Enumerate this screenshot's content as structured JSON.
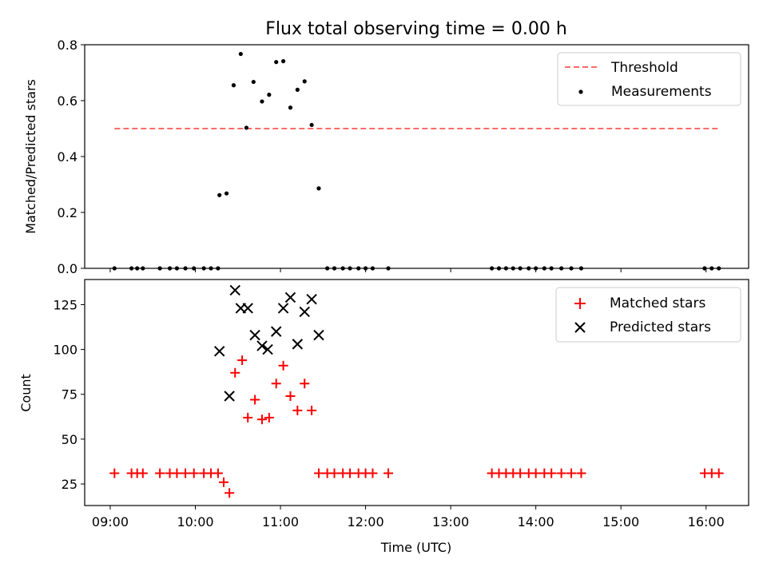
{
  "chart_data": [
    {
      "type": "scatter",
      "title": "Flux total observing time = 0.00 h",
      "xlabel": "",
      "ylabel": "Matched/Predicted stars",
      "xlim": [
        "08:42",
        "16:30"
      ],
      "ylim": [
        0,
        0.8
      ],
      "yticks": [
        "0.0",
        "0.2",
        "0.4",
        "0.6",
        "0.8"
      ],
      "legend": "top-right",
      "threshold": {
        "name": "Threshold",
        "color": "#ff6b6b",
        "style": "dashed",
        "y": 0.5,
        "x_start": "09:03",
        "x_end": "16:10"
      },
      "series": [
        {
          "name": "Measurements",
          "color": "#000000",
          "marker": "dot",
          "points": [
            [
              "09:03",
              0
            ],
            [
              "09:15",
              0
            ],
            [
              "09:19",
              0
            ],
            [
              "09:23",
              0
            ],
            [
              "09:35",
              0
            ],
            [
              "09:42",
              0
            ],
            [
              "09:47",
              0
            ],
            [
              "09:53",
              0
            ],
            [
              "09:59",
              0
            ],
            [
              "10:06",
              0
            ],
            [
              "10:11",
              0
            ],
            [
              "10:16",
              0
            ],
            [
              "10:17",
              0.262
            ],
            [
              "10:22",
              0.268
            ],
            [
              "10:27",
              0.655
            ],
            [
              "10:32",
              0.767
            ],
            [
              "10:36",
              0.503
            ],
            [
              "10:41",
              0.667
            ],
            [
              "10:47",
              0.597
            ],
            [
              "10:52",
              0.621
            ],
            [
              "10:57",
              0.738
            ],
            [
              "11:02",
              0.741
            ],
            [
              "11:07",
              0.575
            ],
            [
              "11:12",
              0.639
            ],
            [
              "11:17",
              0.669
            ],
            [
              "11:22",
              0.513
            ],
            [
              "11:27",
              0.286
            ],
            [
              "11:33",
              0
            ],
            [
              "11:38",
              0
            ],
            [
              "11:44",
              0
            ],
            [
              "11:49",
              0
            ],
            [
              "11:55",
              0
            ],
            [
              "12:00",
              0
            ],
            [
              "12:05",
              0
            ],
            [
              "12:16",
              0
            ],
            [
              "13:29",
              0
            ],
            [
              "13:34",
              0
            ],
            [
              "13:39",
              0
            ],
            [
              "13:44",
              0
            ],
            [
              "13:49",
              0
            ],
            [
              "13:55",
              0
            ],
            [
              "14:00",
              0
            ],
            [
              "14:06",
              0
            ],
            [
              "14:11",
              0
            ],
            [
              "14:18",
              0
            ],
            [
              "14:25",
              0
            ],
            [
              "14:32",
              0
            ],
            [
              "15:59",
              0
            ],
            [
              "16:04",
              0
            ],
            [
              "16:09",
              0
            ]
          ]
        }
      ]
    },
    {
      "type": "scatter",
      "title": "",
      "xlabel": "Time (UTC)",
      "ylabel": "Count",
      "xlim": [
        "08:42",
        "16:30"
      ],
      "ylim": [
        13,
        139
      ],
      "xticks": [
        "09:00",
        "10:00",
        "11:00",
        "12:00",
        "13:00",
        "14:00",
        "15:00",
        "16:00"
      ],
      "yticks": [
        "25",
        "50",
        "75",
        "100",
        "125"
      ],
      "legend": "top-right",
      "series": [
        {
          "name": "Matched stars",
          "color": "#ff0000",
          "marker": "plus",
          "points": [
            [
              "09:03",
              31
            ],
            [
              "09:15",
              31
            ],
            [
              "09:19",
              31
            ],
            [
              "09:23",
              31
            ],
            [
              "09:35",
              31
            ],
            [
              "09:42",
              31
            ],
            [
              "09:47",
              31
            ],
            [
              "09:53",
              31
            ],
            [
              "09:59",
              31
            ],
            [
              "10:06",
              31
            ],
            [
              "10:11",
              31
            ],
            [
              "10:16",
              31
            ],
            [
              "10:20",
              26
            ],
            [
              "10:24",
              20
            ],
            [
              "10:28",
              87
            ],
            [
              "10:33",
              94
            ],
            [
              "10:37",
              62
            ],
            [
              "10:42",
              72
            ],
            [
              "10:47",
              61
            ],
            [
              "10:52",
              62
            ],
            [
              "10:57",
              81
            ],
            [
              "11:02",
              91
            ],
            [
              "11:07",
              74
            ],
            [
              "11:12",
              66
            ],
            [
              "11:17",
              81
            ],
            [
              "11:22",
              66
            ],
            [
              "11:27",
              31
            ],
            [
              "11:33",
              31
            ],
            [
              "11:38",
              31
            ],
            [
              "11:44",
              31
            ],
            [
              "11:49",
              31
            ],
            [
              "11:55",
              31
            ],
            [
              "12:00",
              31
            ],
            [
              "12:05",
              31
            ],
            [
              "12:16",
              31
            ],
            [
              "13:29",
              31
            ],
            [
              "13:34",
              31
            ],
            [
              "13:39",
              31
            ],
            [
              "13:44",
              31
            ],
            [
              "13:49",
              31
            ],
            [
              "13:55",
              31
            ],
            [
              "14:00",
              31
            ],
            [
              "14:06",
              31
            ],
            [
              "14:11",
              31
            ],
            [
              "14:18",
              31
            ],
            [
              "14:25",
              31
            ],
            [
              "14:32",
              31
            ],
            [
              "15:59",
              31
            ],
            [
              "16:04",
              31
            ],
            [
              "16:09",
              31
            ]
          ]
        },
        {
          "name": "Predicted stars",
          "color": "#000000",
          "marker": "x",
          "points": [
            [
              "10:17",
              99
            ],
            [
              "10:24",
              74
            ],
            [
              "10:28",
              133
            ],
            [
              "10:32",
              123
            ],
            [
              "10:37",
              123
            ],
            [
              "10:42",
              108
            ],
            [
              "10:47",
              102
            ],
            [
              "10:51",
              100
            ],
            [
              "10:57",
              110
            ],
            [
              "11:02",
              123
            ],
            [
              "11:07",
              129
            ],
            [
              "11:12",
              103
            ],
            [
              "11:17",
              121
            ],
            [
              "11:22",
              128
            ],
            [
              "11:27",
              108
            ]
          ]
        }
      ]
    }
  ]
}
